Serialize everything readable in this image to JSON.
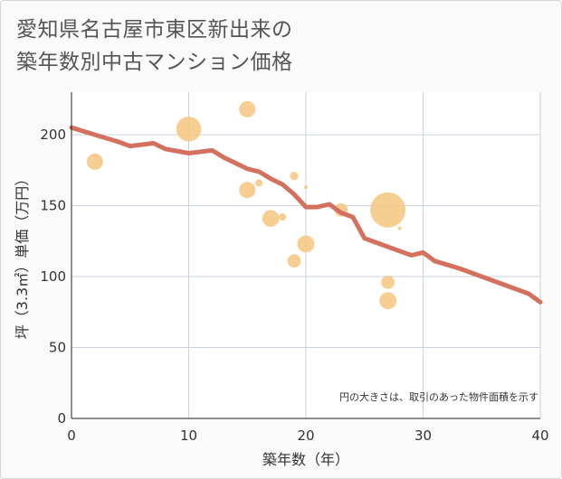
{
  "title_line1": "愛知県名古屋市東区新出来の",
  "title_line2": "築年数別中古マンション価格",
  "chart_data": {
    "type": "scatter",
    "xlabel": "築年数（年）",
    "ylabel": "坪（3.3㎡）単価（万円）",
    "xlim": [
      0,
      40
    ],
    "ylim": [
      0,
      230
    ],
    "xticks": [
      0,
      10,
      20,
      30,
      40
    ],
    "yticks": [
      0,
      50,
      100,
      150,
      200
    ],
    "grid": true,
    "note": "円の大きさは、取引のあった物件面積を示す",
    "colors": {
      "bubble": "#f5c57e",
      "line": "#d4705e",
      "background": "#fafafa",
      "plot_background": "#ffffff",
      "grid": "#c8d3e0"
    },
    "bubbles": [
      {
        "x": 2,
        "y": 181,
        "size": 3
      },
      {
        "x": 10,
        "y": 204,
        "size": 7
      },
      {
        "x": 15,
        "y": 218,
        "size": 3
      },
      {
        "x": 15,
        "y": 161,
        "size": 3
      },
      {
        "x": 16,
        "y": 166,
        "size": 0.6
      },
      {
        "x": 17,
        "y": 141,
        "size": 3.2
      },
      {
        "x": 18,
        "y": 142,
        "size": 0.6
      },
      {
        "x": 19,
        "y": 171,
        "size": 0.8
      },
      {
        "x": 19,
        "y": 111,
        "size": 2
      },
      {
        "x": 20,
        "y": 163,
        "size": 0.15
      },
      {
        "x": 20,
        "y": 123,
        "size": 3.3
      },
      {
        "x": 23,
        "y": 147,
        "size": 2
      },
      {
        "x": 27,
        "y": 147,
        "size": 14
      },
      {
        "x": 27,
        "y": 96,
        "size": 2
      },
      {
        "x": 27,
        "y": 83,
        "size": 3.3
      },
      {
        "x": 28,
        "y": 134,
        "size": 0.15
      }
    ],
    "trend": {
      "x": [
        0,
        2,
        4,
        5,
        7,
        8,
        10,
        12,
        13,
        14,
        15,
        16,
        17,
        18,
        19,
        20,
        21,
        22,
        23,
        24,
        25,
        26,
        27,
        28,
        29,
        30,
        31,
        33,
        35,
        37,
        39,
        40
      ],
      "y": [
        205,
        200,
        195,
        192,
        194,
        190,
        187,
        189,
        184,
        180,
        176,
        174,
        169,
        165,
        158,
        149,
        149,
        151,
        145,
        142,
        127,
        124,
        121,
        118,
        115,
        117,
        111,
        106,
        100,
        94,
        88,
        82
      ]
    }
  }
}
